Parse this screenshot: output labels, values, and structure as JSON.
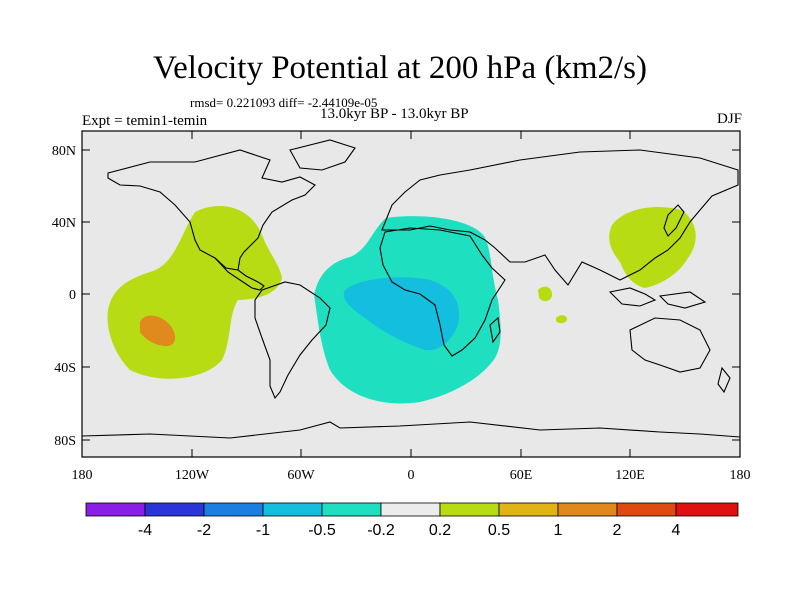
{
  "title": "Velocity Potential at 200 hPa (km2/s)",
  "stats": "rmsd= 0.221093 diff= -2.44109e-05",
  "period": "13.0kyr BP - 13.0kyr BP",
  "experiment": "Expt = temin1-temin",
  "season": "DJF",
  "lat_ticks": [
    "80N",
    "40N",
    "0",
    "40S",
    "80S"
  ],
  "lon_ticks": [
    "180",
    "120W",
    "60W",
    "0",
    "60E",
    "120E",
    "180"
  ],
  "colorbar": {
    "labels": [
      "-4",
      "-2",
      "-1",
      "-0.5",
      "-0.2",
      "0.2",
      "0.5",
      "1",
      "2",
      "4"
    ],
    "colors": [
      "#8a1ee6",
      "#2a34d8",
      "#1c7ee0",
      "#13bede",
      "#1ee0c0",
      "#ececec",
      "#b8dc14",
      "#e0b414",
      "#e0881c",
      "#e04a10",
      "#e01010"
    ]
  },
  "palette": {
    "ocean_bg": "#e8e8e8",
    "pos_weak": "#b8dc14",
    "pos_mid": "#e08a1e",
    "neg_weak": "#1ee0c0",
    "neg_mid": "#13bede"
  }
}
